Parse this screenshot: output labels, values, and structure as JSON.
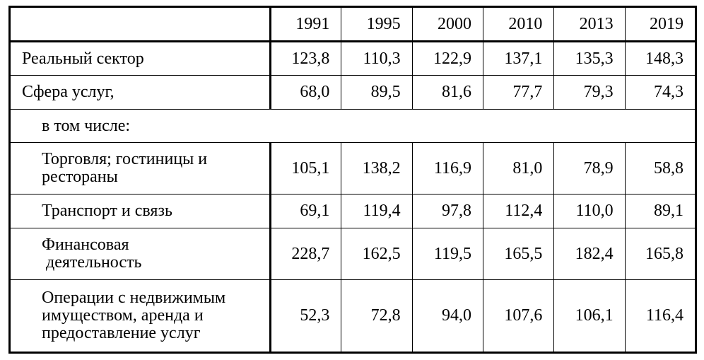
{
  "table": {
    "columns": [
      "1991",
      "1995",
      "2000",
      "2010",
      "2013",
      "2019"
    ],
    "rows": [
      {
        "label": [
          "Реальный сектор"
        ],
        "values": [
          "123,8",
          "110,3",
          "122,9",
          "137,1",
          "135,3",
          "148,3"
        ]
      },
      {
        "label": [
          "Сфера услуг,"
        ],
        "values": [
          "68,0",
          "89,5",
          "81,6",
          "77,7",
          "79,3",
          "74,3"
        ]
      },
      {
        "label": [
          "в том числе:"
        ]
      },
      {
        "label": [
          "Торговля; гостиницы и",
          "рестораны"
        ],
        "values": [
          "105,1",
          "138,2",
          "116,9",
          "81,0",
          "78,9",
          "58,8"
        ]
      },
      {
        "label": [
          "Транспорт и связь"
        ],
        "values": [
          "69,1",
          "119,4",
          "97,8",
          "112,4",
          "110,0",
          "89,1"
        ]
      },
      {
        "label": [
          "Финансовая",
          " деятельность"
        ],
        "values": [
          "228,7",
          "162,5",
          "119,5",
          "165,5",
          "182,4",
          "165,8"
        ]
      },
      {
        "label": [
          "Операции с недвижимым",
          "имуществом, аренда и",
          "предоставление услуг"
        ],
        "values": [
          "52,3",
          "72,8",
          "94,0",
          "107,6",
          "106,1",
          "116,4"
        ]
      }
    ]
  }
}
